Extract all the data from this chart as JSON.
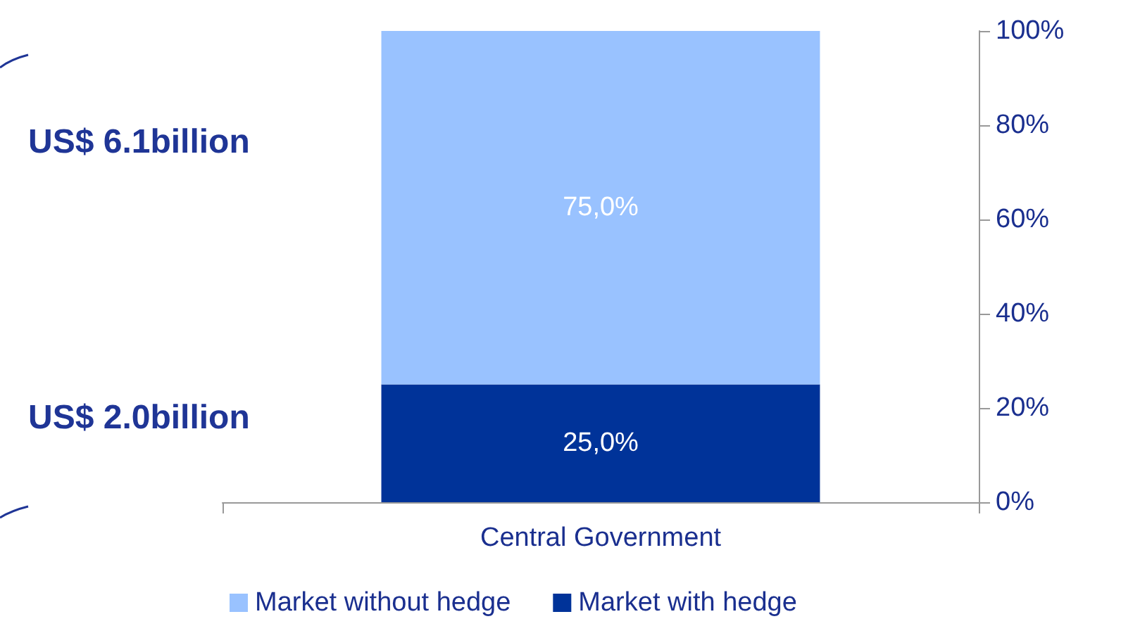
{
  "chart_data": {
    "type": "bar",
    "stacked": true,
    "categories": [
      "Central Government"
    ],
    "series": [
      {
        "name": "Market with hedge",
        "color": "#003399",
        "values": [
          25
        ],
        "value_labels": [
          "25,0%"
        ]
      },
      {
        "name": "Market without hedge",
        "color": "#99c2ff",
        "values": [
          75
        ],
        "value_labels": [
          "75,0%"
        ]
      }
    ],
    "ylim": [
      0,
      100
    ],
    "yticks": [
      {
        "value": 0,
        "label": "0%"
      },
      {
        "value": 20,
        "label": "20%"
      },
      {
        "value": 40,
        "label": "40%"
      },
      {
        "value": 60,
        "label": "60%"
      },
      {
        "value": 80,
        "label": "80%"
      },
      {
        "value": 100,
        "label": "100%"
      }
    ],
    "annotations": [
      "US$ 6.1billion",
      "US$ 2.0billion"
    ],
    "legend": "bottom",
    "grid": false
  }
}
